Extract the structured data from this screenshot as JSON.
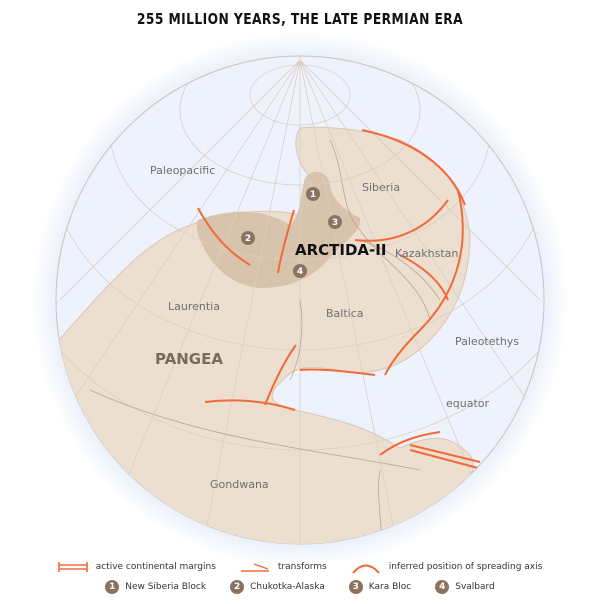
{
  "title": "255 MILLION YEARS, THE LATE PERMIAN ERA",
  "colors": {
    "ocean": "#eaf0fb",
    "land": "#ecdfd0",
    "arctida": "#d6c1a8",
    "margin": "#f06a3a",
    "grid": "#d9cfc4"
  },
  "labels": {
    "paleopacific": "Paleopacific",
    "siberia": "Siberia",
    "arctida": "ARCTIDA-II",
    "kazakhstan": "Kazakhstan",
    "laurentia": "Laurentia",
    "baltica": "Baltica",
    "pangea": "PANGEA",
    "paleotethys": "Paleotethys",
    "equator": "equator",
    "gondwana": "Gondwana"
  },
  "markers": [
    "1",
    "2",
    "3",
    "4"
  ],
  "legend": {
    "symbols": [
      {
        "icon": "active-margin-icon",
        "label": "active continental margins"
      },
      {
        "icon": "transform-icon",
        "label": "transforms"
      },
      {
        "icon": "spreading-axis-icon",
        "label": "inferred position of spreading axis"
      }
    ],
    "blocks": [
      {
        "num": "1",
        "label": "New Siberia Block"
      },
      {
        "num": "2",
        "label": "Chukotka-Alaska"
      },
      {
        "num": "3",
        "label": "Kara Bloc"
      },
      {
        "num": "4",
        "label": "Svalbard"
      }
    ]
  }
}
